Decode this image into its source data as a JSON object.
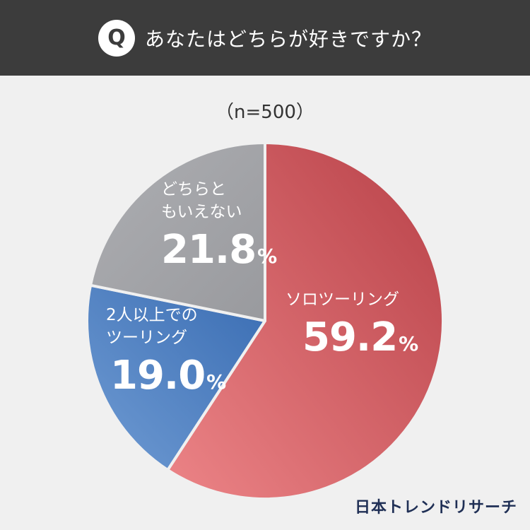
{
  "header": {
    "badge": "Q",
    "question": "あなたはどちらが好きですか？"
  },
  "sample_size": "（n=500）",
  "chart_data": {
    "type": "pie",
    "title": "あなたはどちらが好きですか？",
    "slices": [
      {
        "label": "ソロツーリング",
        "value": 59.2,
        "display": "59.2",
        "color": "#d1575c"
      },
      {
        "label": "2人以上での\nツーリング",
        "value": 19.0,
        "display": "19.0",
        "color": "#4f7fc0"
      },
      {
        "label": "どちらと\nもいえない",
        "value": 21.8,
        "display": "21.8",
        "color": "#a3a4a8"
      }
    ],
    "unit": "%",
    "start": "12 o'clock",
    "direction": "clockwise"
  },
  "logo": "日本トレンドリサーチ"
}
